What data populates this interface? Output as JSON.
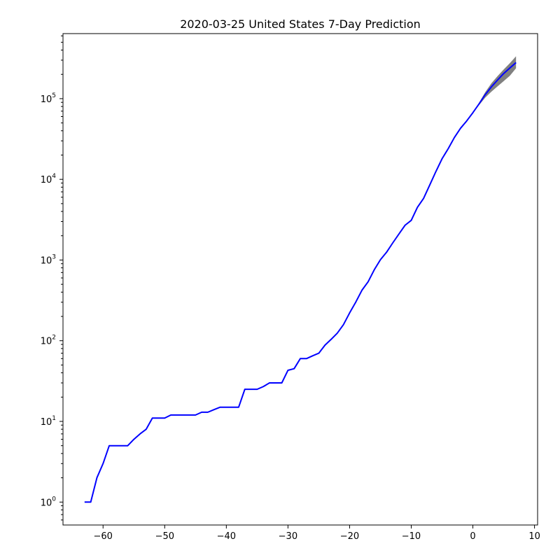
{
  "chart_data": {
    "type": "line",
    "title": "2020-03-25 United States 7-Day Prediction",
    "xlabel": "",
    "ylabel": "",
    "y_scale": "log",
    "xlim": [
      -66.5,
      10.5
    ],
    "ylim": [
      0.52,
      640000
    ],
    "grid": false,
    "x_ticks": [
      -60,
      -50,
      -40,
      -30,
      -20,
      -10,
      0,
      10
    ],
    "x_tick_labels": [
      "−60",
      "−50",
      "−40",
      "−30",
      "−20",
      "−10",
      "0",
      "10"
    ],
    "y_ticks": [
      1,
      10,
      100,
      1000,
      10000,
      100000
    ],
    "y_tick_labels": [
      {
        "base": "10",
        "exp": "0"
      },
      {
        "base": "10",
        "exp": "1"
      },
      {
        "base": "10",
        "exp": "2"
      },
      {
        "base": "10",
        "exp": "3"
      },
      {
        "base": "10",
        "exp": "4"
      },
      {
        "base": "10",
        "exp": "5"
      }
    ],
    "series": [
      {
        "color": "#0000ff",
        "x": [
          -63,
          -62,
          -61,
          -60,
          -59,
          -58,
          -57,
          -56,
          -55,
          -54,
          -53,
          -52,
          -51,
          -50,
          -49,
          -48,
          -47,
          -46,
          -45,
          -44,
          -43,
          -42,
          -41,
          -40,
          -39,
          -38,
          -37,
          -36,
          -35,
          -34,
          -33,
          -32,
          -31,
          -30,
          -29,
          -28,
          -27,
          -26,
          -25,
          -24,
          -23,
          -22,
          -21,
          -20,
          -19,
          -18,
          -17,
          -16,
          -15,
          -14,
          -13,
          -12,
          -11,
          -10,
          -9,
          -8,
          -7,
          -6,
          -5,
          -4,
          -3,
          -2,
          -1,
          0,
          1,
          2,
          3,
          4,
          5,
          6,
          7
        ],
        "y": [
          1,
          1,
          2,
          3,
          5,
          5,
          5,
          5,
          6,
          7,
          8,
          11,
          11,
          11,
          12,
          12,
          12,
          12,
          12,
          13,
          13,
          14,
          15,
          15,
          15,
          15,
          25,
          25,
          25,
          27,
          30,
          30,
          30,
          43,
          45,
          60,
          60,
          65,
          70,
          88,
          104,
          124,
          158,
          221,
          301,
          422,
          537,
          757,
          1010,
          1250,
          1630,
          2100,
          2700,
          3100,
          4500,
          5800,
          8500,
          12500,
          18000,
          24000,
          33000,
          43000,
          53000,
          67000,
          86000,
          112000,
          140000,
          170000,
          205000,
          240000,
          280000
        ]
      }
    ],
    "prediction_band": {
      "color": "#808080",
      "x": [
        0,
        1,
        2,
        3,
        4,
        5,
        6,
        7
      ],
      "lower": [
        67000,
        83000,
        103000,
        122000,
        142000,
        165000,
        192000,
        238000
      ],
      "upper": [
        67000,
        89000,
        120000,
        155000,
        190000,
        230000,
        275000,
        335000
      ]
    }
  }
}
